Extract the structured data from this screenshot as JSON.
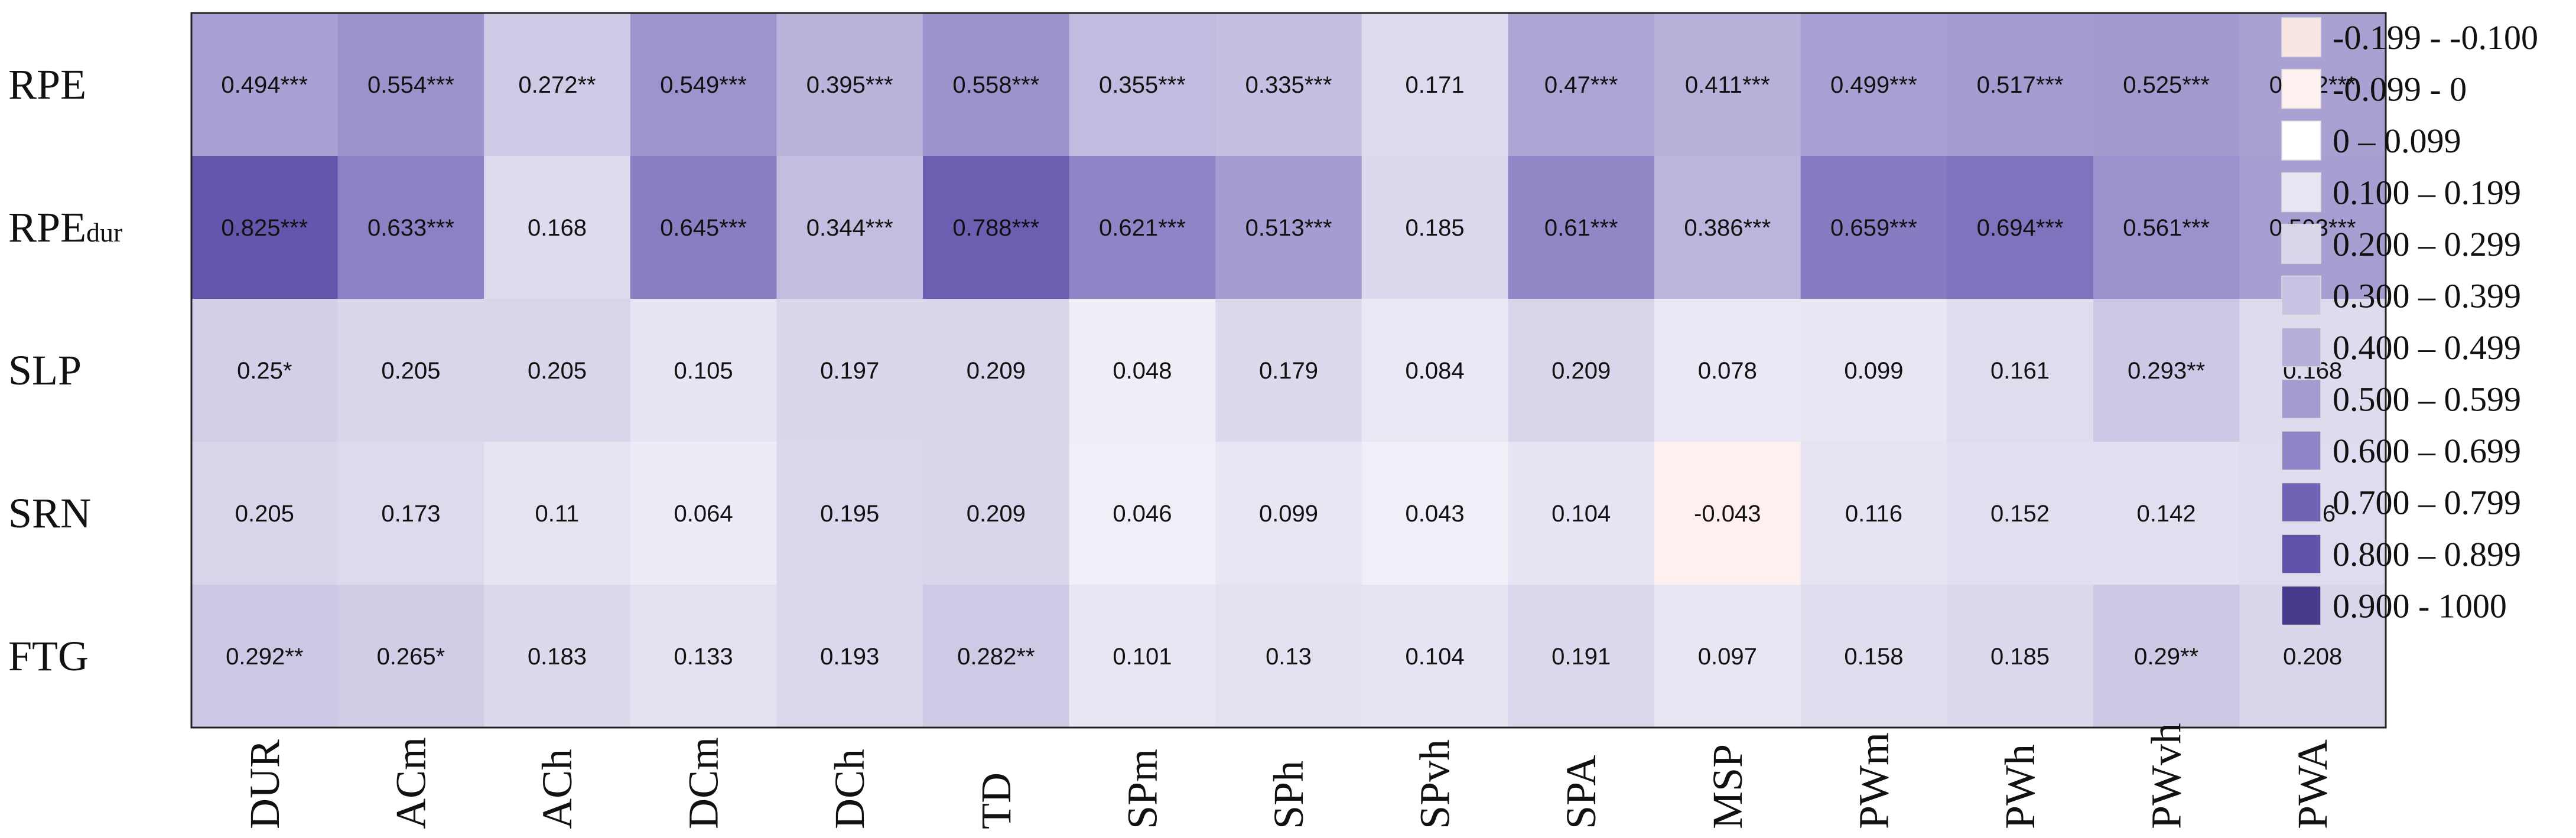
{
  "chart_data": {
    "type": "heatmap",
    "rows": [
      {
        "label": "RPE",
        "sub": ""
      },
      {
        "label": "RPE",
        "sub": "dur"
      },
      {
        "label": "SLP",
        "sub": ""
      },
      {
        "label": "SRN",
        "sub": ""
      },
      {
        "label": "FTG",
        "sub": ""
      }
    ],
    "columns": [
      "DUR",
      "ACm",
      "ACh",
      "DCm",
      "DCh",
      "TD",
      "SPm",
      "SPh",
      "SPvh",
      "SPA",
      "MSP",
      "PWm",
      "PWh",
      "PWvh",
      "PWA"
    ],
    "values": [
      [
        0.494,
        0.554,
        0.272,
        0.549,
        0.395,
        0.558,
        0.355,
        0.335,
        0.171,
        0.47,
        0.411,
        0.499,
        0.517,
        0.525,
        0.492
      ],
      [
        0.825,
        0.633,
        0.168,
        0.645,
        0.344,
        0.788,
        0.621,
        0.513,
        0.185,
        0.61,
        0.386,
        0.659,
        0.694,
        0.561,
        0.503
      ],
      [
        0.25,
        0.205,
        0.205,
        0.105,
        0.197,
        0.209,
        0.048,
        0.179,
        0.084,
        0.209,
        0.078,
        0.099,
        0.161,
        0.293,
        0.168
      ],
      [
        0.205,
        0.173,
        0.11,
        0.064,
        0.195,
        0.209,
        0.046,
        0.099,
        0.043,
        0.104,
        -0.043,
        0.116,
        0.152,
        0.142,
        0.16
      ],
      [
        0.292,
        0.265,
        0.183,
        0.133,
        0.193,
        0.282,
        0.101,
        0.13,
        0.104,
        0.191,
        0.097,
        0.158,
        0.185,
        0.29,
        0.208
      ]
    ],
    "labels": [
      [
        "0.494***",
        "0.554***",
        "0.272**",
        "0.549***",
        "0.395***",
        "0.558***",
        "0.355***",
        "0.335***",
        "0.171",
        "0.47***",
        "0.411***",
        "0.499***",
        "0.517***",
        "0.525***",
        "0.492***"
      ],
      [
        "0.825***",
        "0.633***",
        "0.168",
        "0.645***",
        "0.344***",
        "0.788***",
        "0.621***",
        "0.513***",
        "0.185",
        "0.61***",
        "0.386***",
        "0.659***",
        "0.694***",
        "0.561***",
        "0.503***"
      ],
      [
        "0.25*",
        "0.205",
        "0.205",
        "0.105",
        "0.197",
        "0.209",
        "0.048",
        "0.179",
        "0.084",
        "0.209",
        "0.078",
        "0.099",
        "0.161",
        "0.293**",
        "0.168"
      ],
      [
        "0.205",
        "0.173",
        "0.11",
        "0.064",
        "0.195",
        "0.209",
        "0.046",
        "0.099",
        "0.043",
        "0.104",
        "-0.043",
        "0.116",
        "0.152",
        "0.142",
        "0.16"
      ],
      [
        "0.292**",
        "0.265*",
        "0.183",
        "0.133",
        "0.193",
        "0.282**",
        "0.101",
        "0.13",
        "0.104",
        "0.191",
        "0.097",
        "0.158",
        "0.185",
        "0.29**",
        "0.208"
      ]
    ],
    "legend": [
      {
        "label": "-0.199 - -0.100",
        "color": "#f9e5e1"
      },
      {
        "label": "-0.099 - 0",
        "color": "#fdf1ef"
      },
      {
        "label": "0 – 0.099",
        "color": "#ffffff"
      },
      {
        "label": "0.100 – 0.199",
        "color": "#e8e6f3"
      },
      {
        "label": "0.200 – 0.299",
        "color": "#d9d5ea"
      },
      {
        "label": "0.300 – 0.399",
        "color": "#c9c2e2"
      },
      {
        "label": "0.400 – 0.499",
        "color": "#b7aed9"
      },
      {
        "label": "0.500 – 0.599",
        "color": "#a69bd0"
      },
      {
        "label": "0.600 – 0.699",
        "color": "#8f84c5"
      },
      {
        "label": "0.700 – 0.799",
        "color": "#7063b5"
      },
      {
        "label": "0.800 – 0.899",
        "color": "#5f53aa"
      },
      {
        "label": "0.900 - 1000",
        "color": "#463a8c"
      }
    ],
    "legend_position": "right",
    "title": "",
    "xlabel": "",
    "ylabel": ""
  }
}
